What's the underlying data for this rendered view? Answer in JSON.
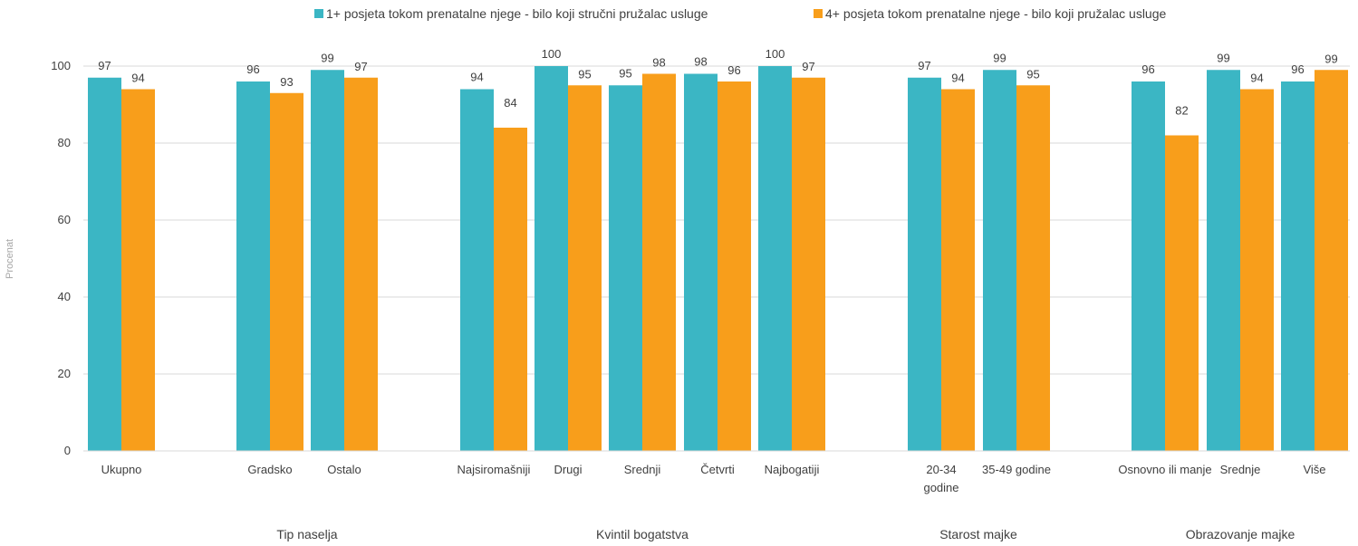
{
  "chart_data": {
    "type": "bar",
    "ylabel": "Procenat",
    "ylim": [
      0,
      100
    ],
    "yticks": [
      0,
      20,
      40,
      60,
      80,
      100
    ],
    "legend_position": "top",
    "grid": true,
    "series": [
      {
        "name": "1+ posjeta tokom prenatalne njege - bilo koji stručni pružalac usluge",
        "color": "#3BB6C4",
        "values": [
          97,
          96,
          99,
          94,
          100,
          95,
          98,
          100,
          97,
          99,
          96,
          99,
          96
        ]
      },
      {
        "name": "4+  posjeta tokom prenatalne njege - bilo koji pružalac usluge",
        "color": "#F89E1B",
        "values": [
          94,
          93,
          97,
          84,
          95,
          98,
          96,
          97,
          94,
          95,
          82,
          94,
          99
        ]
      }
    ],
    "categories": [
      {
        "label": "Ukupno",
        "lines": [
          "Ukupno"
        ]
      },
      {
        "label": "Gradsko",
        "lines": [
          "Gradsko"
        ]
      },
      {
        "label": "Ostalo",
        "lines": [
          "Ostalo"
        ]
      },
      {
        "label": "Najsiromašniji",
        "lines": [
          "Najsiromašniji"
        ]
      },
      {
        "label": "Drugi",
        "lines": [
          "Drugi"
        ]
      },
      {
        "label": "Srednji",
        "lines": [
          "Srednji"
        ]
      },
      {
        "label": "Četvrti",
        "lines": [
          "Četvrti"
        ]
      },
      {
        "label": "Najbogatiji",
        "lines": [
          "Najbogatiji"
        ]
      },
      {
        "label": "20-34 godine",
        "lines": [
          "20-34",
          "godine"
        ]
      },
      {
        "label": "35-49 godine",
        "lines": [
          "35-49 godine"
        ]
      },
      {
        "label": "Osnovno ili manje",
        "lines": [
          "Osnovno ili manje"
        ]
      },
      {
        "label": "Srednje",
        "lines": [
          "Srednje"
        ]
      },
      {
        "label": "Više",
        "lines": [
          "Više"
        ]
      }
    ],
    "groups": [
      {
        "label": "Tip naselja"
      },
      {
        "label": "Kvintil bogatstva"
      },
      {
        "label": "Starost majke"
      },
      {
        "label": "Obrazovanje majke"
      }
    ]
  }
}
